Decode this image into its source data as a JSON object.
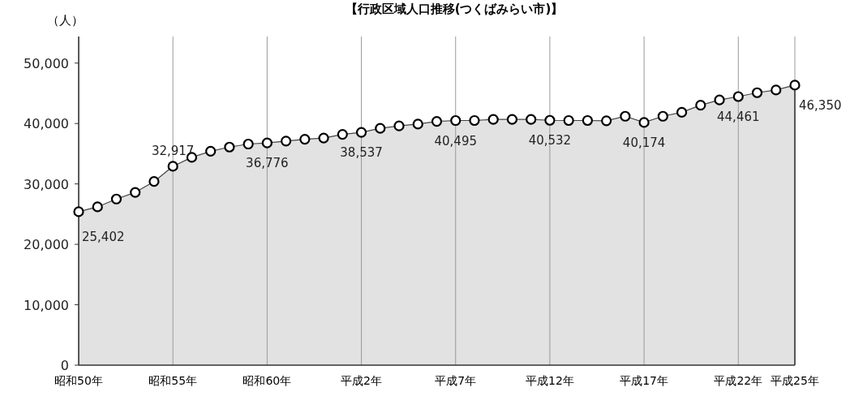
{
  "chart_data": {
    "type": "area",
    "title": "【行政区域人口推移(つくばみらい市)】",
    "ylabel": "（人）",
    "categories": [
      "昭和50年",
      null,
      null,
      null,
      null,
      "昭和55年",
      null,
      null,
      null,
      null,
      "昭和60年",
      null,
      null,
      null,
      null,
      "平成2年",
      null,
      null,
      null,
      null,
      "平成7年",
      null,
      null,
      null,
      null,
      "平成12年",
      null,
      null,
      null,
      null,
      "平成17年",
      null,
      null,
      null,
      null,
      "平成22年",
      null,
      null,
      "平成25年"
    ],
    "series": [
      {
        "color": "#e2e2e2",
        "values": [
          25402,
          26200,
          27500,
          28600,
          30400,
          32917,
          34400,
          35400,
          36100,
          36600,
          36776,
          37100,
          37400,
          37600,
          38200,
          38537,
          39200,
          39600,
          39900,
          40350,
          40495,
          40500,
          40680,
          40680,
          40680,
          40532,
          40500,
          40500,
          40450,
          41200,
          40174,
          41200,
          41850,
          43030,
          43900,
          44461,
          45100,
          45550,
          46350
        ],
        "value_labels": [
          "25,402",
          null,
          null,
          null,
          null,
          "32,917",
          null,
          null,
          null,
          null,
          "36,776",
          null,
          null,
          null,
          null,
          "38,537",
          null,
          null,
          null,
          null,
          "40,495",
          null,
          null,
          null,
          null,
          "40,532",
          null,
          null,
          null,
          null,
          "40,174",
          null,
          null,
          null,
          null,
          "44,461",
          null,
          null,
          "46,350"
        ]
      }
    ],
    "ylim": [
      0,
      54400
    ],
    "yticks": [
      0,
      {
        "value": 10000,
        "label": "10,000"
      },
      {
        "value": 20000,
        "label": "20,000"
      },
      {
        "value": 30000,
        "label": "30,000"
      },
      {
        "value": 40000,
        "label": "40,000"
      },
      {
        "value": 50000,
        "label": "50,000"
      }
    ],
    "grid": "x",
    "marker": "circle"
  }
}
